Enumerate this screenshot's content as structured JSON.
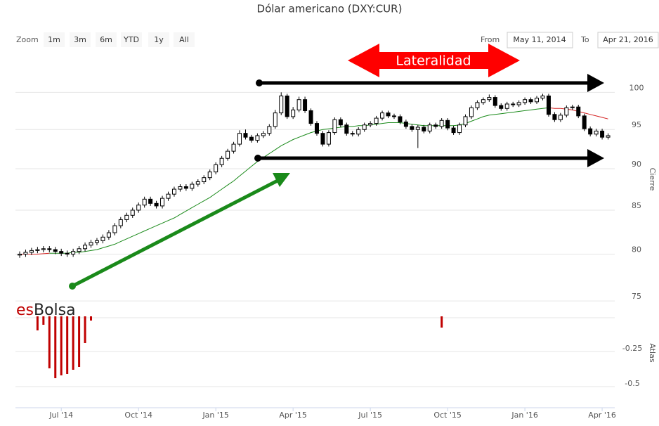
{
  "zoom": {
    "label": "Zoom",
    "buttons": [
      "1m",
      "3m",
      "6m",
      "YTD",
      "1y",
      "All"
    ]
  },
  "range": {
    "from_label": "From",
    "from": "May 11, 2014",
    "to_label": "To",
    "to": "Apr 21, 2016"
  },
  "logo": {
    "first": "es",
    "second": "Bolsa"
  },
  "chart_data": {
    "type": "candlestick",
    "title": "Dólar americano (DXY:CUR)",
    "annotation": "Lateralidad",
    "ylabel": "Cierre",
    "yscale": "log",
    "ylim": [
      74.5,
      105
    ],
    "yticks": [
      75,
      80,
      85,
      90,
      95,
      100
    ],
    "up_color": "#ffffff",
    "down_color": "#000000",
    "categories": [
      null,
      null,
      null,
      null,
      null,
      null,
      null,
      "Jul '14",
      null,
      null,
      null,
      null,
      null,
      null,
      null,
      null,
      null,
      null,
      null,
      null,
      "Oct '14",
      null,
      null,
      null,
      null,
      null,
      null,
      null,
      null,
      null,
      null,
      null,
      null,
      "Jan '15",
      null,
      null,
      null,
      null,
      null,
      null,
      null,
      null,
      null,
      null,
      null,
      null,
      "Apr '15",
      null,
      null,
      null,
      null,
      null,
      null,
      null,
      null,
      null,
      null,
      null,
      null,
      "Jul '15",
      null,
      null,
      null,
      null,
      null,
      null,
      null,
      null,
      null,
      null,
      null,
      null,
      "Oct '15",
      null,
      null,
      null,
      null,
      null,
      null,
      null,
      null,
      null,
      null,
      null,
      null,
      "Jan '16",
      null,
      null,
      null,
      null,
      null,
      null,
      null,
      null,
      null,
      null,
      null,
      null,
      "Apr '16",
      null
    ],
    "open": [
      79.9,
      80.0,
      80.2,
      80.4,
      80.5,
      80.6,
      80.5,
      80.3,
      80.1,
      80.0,
      80.3,
      80.6,
      81.0,
      81.3,
      81.5,
      81.9,
      82.4,
      83.2,
      83.9,
      84.4,
      85.0,
      85.6,
      86.3,
      85.8,
      85.5,
      86.4,
      86.9,
      87.5,
      87.8,
      87.6,
      88.1,
      88.4,
      88.9,
      89.6,
      90.5,
      91.3,
      92.2,
      93.1,
      94.5,
      94.0,
      93.6,
      94.2,
      94.5,
      95.4,
      97.2,
      99.5,
      96.7,
      97.6,
      99.0,
      97.5,
      95.8,
      94.5,
      93.1,
      94.6,
      96.3,
      95.6,
      94.5,
      94.4,
      95.0,
      95.6,
      95.8,
      96.5,
      97.2,
      96.8,
      96.7,
      96.0,
      95.4,
      95.0,
      95.3,
      94.8,
      95.6,
      95.4,
      96.2,
      95.2,
      94.6,
      95.6,
      96.7,
      97.9,
      98.6,
      99.0,
      99.3,
      98.2,
      97.8,
      98.4,
      98.3,
      98.6,
      99.0,
      98.7,
      99.2,
      99.5,
      97.0,
      96.3,
      96.9,
      97.9,
      98.0,
      96.8,
      95.1,
      94.4,
      94.8,
      94.0
    ],
    "high": [
      80.3,
      80.5,
      80.7,
      80.8,
      80.9,
      80.9,
      80.8,
      80.6,
      80.4,
      80.6,
      80.9,
      81.3,
      81.6,
      81.8,
      82.2,
      82.7,
      83.5,
      84.2,
      84.7,
      85.3,
      85.9,
      86.6,
      86.6,
      86.1,
      86.7,
      87.2,
      87.8,
      88.1,
      88.1,
      88.4,
      88.7,
      89.2,
      89.9,
      90.8,
      91.6,
      92.5,
      93.4,
      94.9,
      95.0,
      94.3,
      94.5,
      94.8,
      95.7,
      97.6,
      100.0,
      99.8,
      98.0,
      99.4,
      99.4,
      97.8,
      96.1,
      94.8,
      94.9,
      96.6,
      96.6,
      95.9,
      94.8,
      95.3,
      95.9,
      96.1,
      96.8,
      97.5,
      97.5,
      97.1,
      97.0,
      96.3,
      95.7,
      95.6,
      95.6,
      95.9,
      95.9,
      96.5,
      96.5,
      95.5,
      95.9,
      97.0,
      98.2,
      98.9,
      99.3,
      99.7,
      99.6,
      98.5,
      98.7,
      98.7,
      98.9,
      99.3,
      99.3,
      99.5,
      99.8,
      99.8,
      97.3,
      97.2,
      98.2,
      98.3,
      98.3,
      97.1,
      95.4,
      95.1,
      95.1,
      94.5
    ],
    "low": [
      79.6,
      79.7,
      79.9,
      80.1,
      80.2,
      80.2,
      80.0,
      79.8,
      79.7,
      79.7,
      80.0,
      80.3,
      80.7,
      81.0,
      81.2,
      81.6,
      82.1,
      82.9,
      83.6,
      84.1,
      84.7,
      85.3,
      85.5,
      85.2,
      85.2,
      86.1,
      86.6,
      87.2,
      87.3,
      87.3,
      87.8,
      88.1,
      88.6,
      89.3,
      90.2,
      91.0,
      91.9,
      92.8,
      93.7,
      93.3,
      93.3,
      93.9,
      94.2,
      95.1,
      96.9,
      96.4,
      96.4,
      97.3,
      97.2,
      95.5,
      94.2,
      92.8,
      92.8,
      94.3,
      95.3,
      94.2,
      94.1,
      94.1,
      94.7,
      95.3,
      95.5,
      96.2,
      96.5,
      96.4,
      95.7,
      95.1,
      94.7,
      92.6,
      94.5,
      94.5,
      95.1,
      95.1,
      94.9,
      94.3,
      94.3,
      95.3,
      96.4,
      97.6,
      98.3,
      98.7,
      97.9,
      97.5,
      97.5,
      98.0,
      98.0,
      98.3,
      98.4,
      98.4,
      98.9,
      96.7,
      96.0,
      96.0,
      96.6,
      97.6,
      96.5,
      94.8,
      94.1,
      94.1,
      93.7,
      93.7
    ],
    "close": [
      80.0,
      80.2,
      80.4,
      80.5,
      80.6,
      80.5,
      80.3,
      80.1,
      80.0,
      80.3,
      80.6,
      81.0,
      81.3,
      81.5,
      81.9,
      82.4,
      83.2,
      83.9,
      84.4,
      85.0,
      85.6,
      86.3,
      85.8,
      85.5,
      86.4,
      86.9,
      87.5,
      87.8,
      87.6,
      88.1,
      88.4,
      88.9,
      89.6,
      90.5,
      91.3,
      92.2,
      93.1,
      94.5,
      94.0,
      93.6,
      94.2,
      94.5,
      95.4,
      97.2,
      99.5,
      96.7,
      97.6,
      99.0,
      97.5,
      95.8,
      94.5,
      93.1,
      94.6,
      96.3,
      95.6,
      94.5,
      94.4,
      95.0,
      95.6,
      95.8,
      96.5,
      97.2,
      96.8,
      96.7,
      96.0,
      95.4,
      95.0,
      95.3,
      94.8,
      95.6,
      95.4,
      96.2,
      95.2,
      94.6,
      95.6,
      96.7,
      97.9,
      98.6,
      99.0,
      99.3,
      98.2,
      97.8,
      98.4,
      98.3,
      98.6,
      99.0,
      98.7,
      99.2,
      99.5,
      97.0,
      96.3,
      96.9,
      97.9,
      98.0,
      96.8,
      95.1,
      94.4,
      94.8,
      94.0,
      94.2
    ],
    "moving_average": [
      {
        "color": "#1a8a1a",
        "values": [
          null,
          null,
          null,
          null,
          null,
          80.1,
          80.1,
          80.1,
          80.1,
          80.2,
          80.2,
          80.3,
          80.4,
          80.5,
          80.7,
          80.9,
          81.1,
          81.4,
          81.7,
          82.0,
          82.3,
          82.6,
          82.9,
          83.2,
          83.5,
          83.8,
          84.1,
          84.5,
          84.9,
          85.3,
          85.7,
          86.1,
          86.5,
          87.0,
          87.5,
          88.0,
          88.5,
          89.1,
          89.7,
          90.3,
          90.9,
          91.4,
          91.9,
          92.4,
          92.9,
          93.3,
          93.7,
          94.0,
          94.3,
          94.6,
          94.8,
          95.0,
          95.1,
          95.2,
          95.3,
          95.4,
          95.4,
          95.5,
          95.5,
          95.6,
          95.7,
          95.8,
          95.9,
          95.9,
          95.9,
          95.8,
          95.7,
          95.6,
          95.5,
          95.5,
          95.5,
          95.5,
          95.5,
          95.5,
          95.6,
          95.8,
          96.1,
          96.4,
          96.7,
          96.9,
          97.0,
          97.1,
          97.2,
          97.3,
          97.4,
          97.5,
          97.6,
          97.7,
          97.8,
          97.9,
          null,
          null,
          null,
          null,
          null,
          null,
          null,
          null,
          null,
          null
        ]
      },
      {
        "color": "#d42020",
        "values": [
          80.0,
          80.0,
          80.0,
          80.0,
          80.05,
          80.1,
          null,
          null,
          null,
          null,
          null,
          null,
          null,
          null,
          null,
          null,
          null,
          null,
          null,
          null,
          null,
          null,
          null,
          null,
          null,
          null,
          null,
          null,
          null,
          null,
          null,
          null,
          null,
          null,
          null,
          null,
          null,
          null,
          null,
          null,
          null,
          null,
          null,
          null,
          null,
          null,
          null,
          null,
          null,
          null,
          null,
          null,
          null,
          null,
          null,
          null,
          null,
          null,
          null,
          null,
          null,
          null,
          null,
          null,
          null,
          null,
          null,
          null,
          null,
          null,
          null,
          null,
          null,
          null,
          null,
          null,
          null,
          null,
          null,
          null,
          null,
          null,
          null,
          null,
          null,
          null,
          null,
          null,
          null,
          97.9,
          97.8,
          97.8,
          97.7,
          97.6,
          97.4,
          97.2,
          97.0,
          96.8,
          96.6,
          96.4
        ]
      }
    ],
    "indicator": {
      "type": "bar",
      "ylabel": "Atlas",
      "color": "#c00000",
      "ylim": [
        -0.65,
        0
      ],
      "yticks": [
        -0.5,
        -0.25
      ],
      "values": [
        null,
        null,
        null,
        -0.1,
        -0.06,
        -0.37,
        -0.44,
        -0.42,
        -0.41,
        -0.38,
        -0.36,
        -0.19,
        -0.03,
        null,
        null,
        null,
        null,
        null,
        null,
        null,
        null,
        null,
        null,
        null,
        null,
        null,
        null,
        null,
        null,
        null,
        null,
        null,
        null,
        null,
        null,
        null,
        null,
        null,
        null,
        null,
        null,
        null,
        null,
        null,
        null,
        null,
        null,
        null,
        null,
        null,
        null,
        null,
        null,
        null,
        null,
        null,
        null,
        null,
        null,
        null,
        null,
        null,
        null,
        null,
        null,
        null,
        null,
        null,
        null,
        null,
        null,
        -0.08,
        null,
        null,
        null,
        null,
        null,
        null,
        null,
        null,
        null,
        null,
        null,
        null,
        null,
        null,
        null,
        null,
        null,
        null,
        null,
        null,
        null,
        null,
        null,
        null,
        null,
        null,
        null,
        null
      ]
    }
  }
}
